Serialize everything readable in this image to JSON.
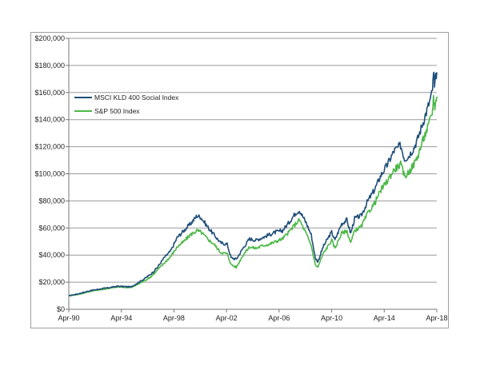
{
  "chart_data": {
    "type": "line",
    "title": "",
    "xlabel": "",
    "ylabel": "",
    "ylim": [
      0,
      200000
    ],
    "yticks": [
      0,
      20000,
      40000,
      60000,
      80000,
      100000,
      120000,
      140000,
      160000,
      180000,
      200000
    ],
    "ytick_labels": [
      "$0",
      "$20,000",
      "$40,000",
      "$60,000",
      "$80,000",
      "$100,000",
      "$120,000",
      "$140,000",
      "$160,000",
      "$180,000",
      "$200,000"
    ],
    "xlim": [
      1990.25,
      2018.25
    ],
    "xticks": [
      1990.25,
      1994.25,
      1998.25,
      2002.25,
      2006.25,
      2010.25,
      2014.25,
      2018.25
    ],
    "xtick_labels": [
      "Apr-90",
      "Apr-94",
      "Apr-98",
      "Apr-02",
      "Apr-06",
      "Apr-10",
      "Apr-14",
      "Apr-18"
    ],
    "grid": "horizontal",
    "legend": "top-left",
    "series": [
      {
        "name": "MSCI KLD 400 Social Index",
        "color": "#1f4e79",
        "x": [
          1990.25,
          1991.0,
          1992.0,
          1993.0,
          1994.0,
          1995.0,
          1996.0,
          1996.5,
          1997.0,
          1997.5,
          1998.0,
          1998.5,
          1999.0,
          1999.5,
          2000.0,
          2000.3,
          2000.8,
          2001.3,
          2001.8,
          2002.3,
          2002.6,
          2003.0,
          2003.5,
          2004.0,
          2004.5,
          2005.0,
          2005.5,
          2006.0,
          2006.5,
          2007.0,
          2007.5,
          2007.8,
          2008.3,
          2008.7,
          2009.0,
          2009.2,
          2009.6,
          2010.0,
          2010.25,
          2010.5,
          2011.0,
          2011.4,
          2011.7,
          2012.0,
          2012.5,
          2013.0,
          2013.5,
          2014.0,
          2014.5,
          2015.0,
          2015.5,
          2015.8,
          2016.1,
          2016.5,
          2016.8,
          2017.2,
          2017.6,
          2017.9,
          2018.0,
          2018.1,
          2018.25
        ],
        "values": [
          10000,
          11500,
          14000,
          15500,
          17000,
          16500,
          22500,
          26000,
          31000,
          38000,
          43000,
          53000,
          58000,
          63000,
          69000,
          68000,
          61000,
          55000,
          49000,
          48000,
          38000,
          37000,
          45000,
          52000,
          51000,
          53000,
          55000,
          57000,
          58000,
          64000,
          71000,
          73000,
          64000,
          55000,
          38000,
          35000,
          46000,
          53000,
          57000,
          51000,
          63000,
          66000,
          56000,
          67000,
          69000,
          80000,
          88000,
          99000,
          107000,
          117000,
          121000,
          111000,
          113000,
          119000,
          126000,
          138000,
          150000,
          160000,
          173000,
          166000,
          175000
        ]
      },
      {
        "name": "S&P 500 Index",
        "color": "#4cb847",
        "x": [
          1990.25,
          1991.0,
          1992.0,
          1993.0,
          1994.0,
          1995.0,
          1996.0,
          1996.5,
          1997.0,
          1997.5,
          1998.0,
          1998.5,
          1999.0,
          1999.5,
          2000.0,
          2000.3,
          2000.8,
          2001.3,
          2001.8,
          2002.3,
          2002.6,
          2003.0,
          2003.5,
          2004.0,
          2004.5,
          2005.0,
          2005.5,
          2006.0,
          2006.5,
          2007.0,
          2007.5,
          2007.8,
          2008.3,
          2008.7,
          2009.0,
          2009.2,
          2009.6,
          2010.0,
          2010.25,
          2010.5,
          2011.0,
          2011.4,
          2011.7,
          2012.0,
          2012.5,
          2013.0,
          2013.5,
          2014.0,
          2014.5,
          2015.0,
          2015.5,
          2015.8,
          2016.1,
          2016.5,
          2016.8,
          2017.2,
          2017.6,
          2017.9,
          2018.0,
          2018.1,
          2018.25
        ],
        "values": [
          10000,
          11000,
          13500,
          15000,
          16500,
          16000,
          21000,
          24000,
          29000,
          34000,
          39000,
          46000,
          50000,
          55000,
          58000,
          57000,
          52000,
          48000,
          42000,
          41000,
          33000,
          31000,
          40000,
          46000,
          45000,
          47000,
          48000,
          50000,
          52000,
          57000,
          63000,
          66000,
          56000,
          47000,
          33000,
          31000,
          41000,
          47000,
          51000,
          45000,
          56000,
          58000,
          49000,
          58000,
          61000,
          71000,
          78000,
          88000,
          95000,
          103000,
          107000,
          98000,
          101000,
          107000,
          113000,
          125000,
          135000,
          145000,
          156000,
          150000,
          157000
        ]
      }
    ]
  }
}
